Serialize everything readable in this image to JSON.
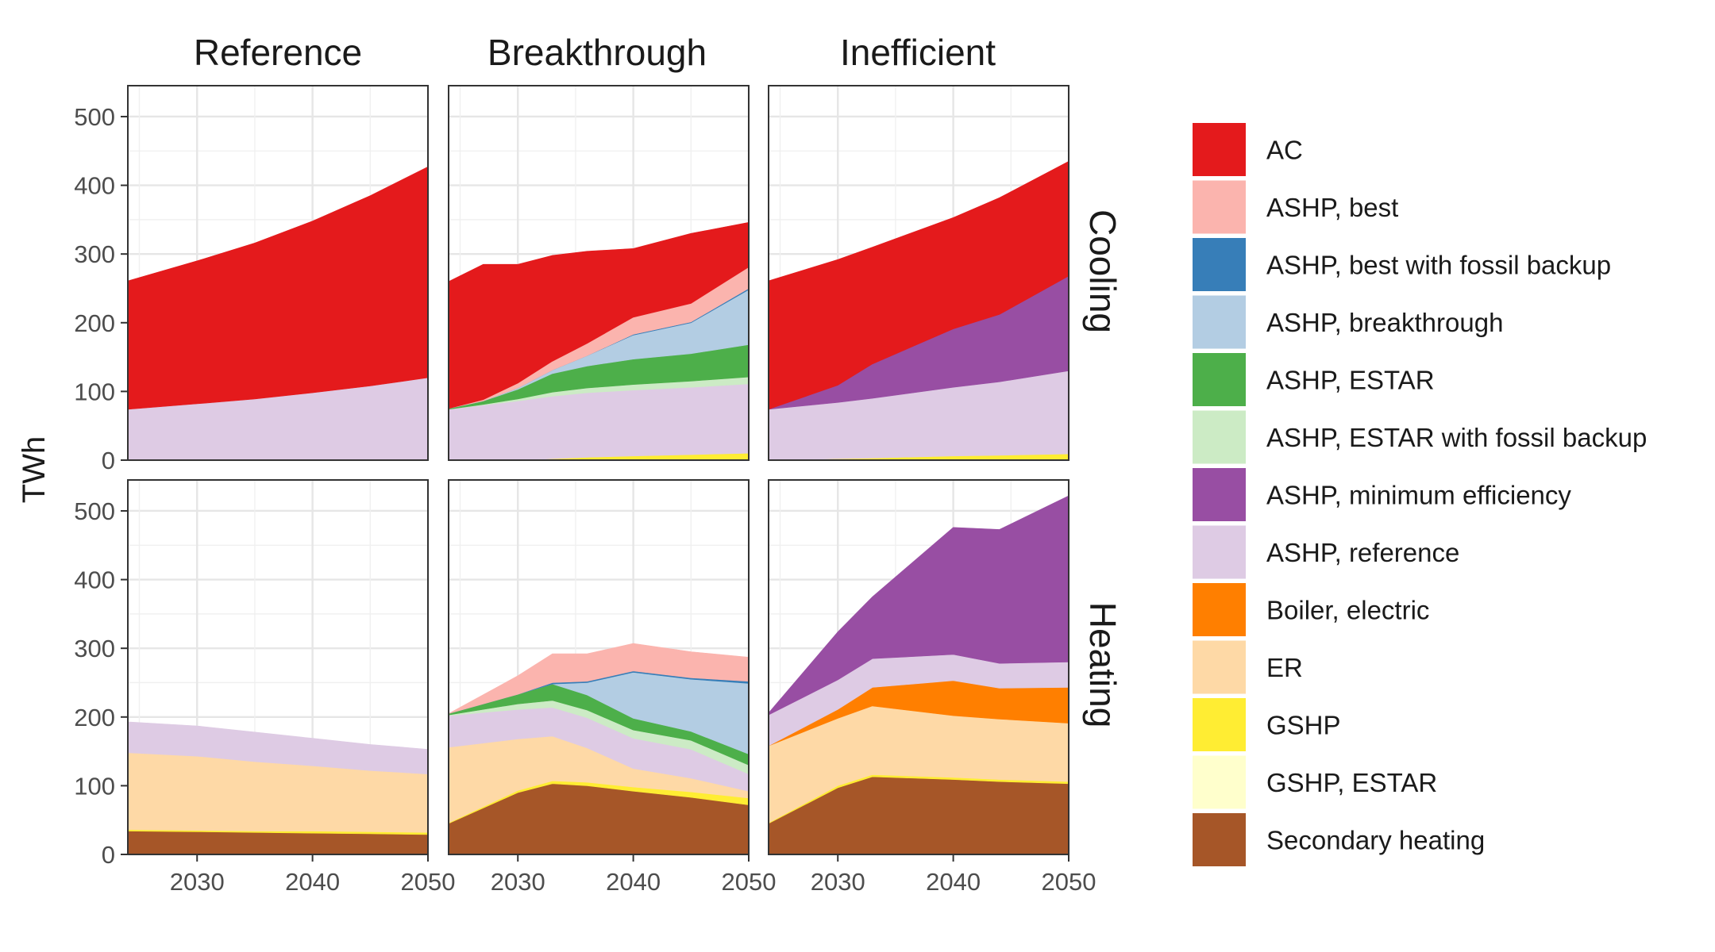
{
  "chart_data": {
    "type": "area",
    "stacked": true,
    "ylabel": "TWh",
    "xlabel": "",
    "x_ticks": [
      2030,
      2040,
      2050
    ],
    "y_ticks": [
      0,
      100,
      200,
      300,
      400,
      500
    ],
    "xlim": [
      2024,
      2050
    ],
    "ylim": [
      0,
      545
    ],
    "grid": true,
    "legend_position": "right",
    "columns": [
      "Reference",
      "Breakthrough",
      "Inefficient"
    ],
    "rows": [
      "Cooling",
      "Heating"
    ],
    "legend": [
      {
        "name": "AC",
        "color": "#E41A1C"
      },
      {
        "name": "ASHP, best",
        "color": "#FBB4AE"
      },
      {
        "name": "ASHP, best with fossil backup",
        "color": "#377EB8"
      },
      {
        "name": "ASHP, breakthrough",
        "color": "#B3CDE3"
      },
      {
        "name": "ASHP, ESTAR",
        "color": "#4DAF4A"
      },
      {
        "name": "ASHP, ESTAR with fossil backup",
        "color": "#CCEBC5"
      },
      {
        "name": "ASHP, minimum efficiency",
        "color": "#984EA3"
      },
      {
        "name": "ASHP, reference",
        "color": "#DECBE4"
      },
      {
        "name": "Boiler, electric",
        "color": "#FF7F00"
      },
      {
        "name": "ER",
        "color": "#FED9A6"
      },
      {
        "name": "GSHP",
        "color": "#FFED33"
      },
      {
        "name": "GSHP, ESTAR",
        "color": "#FFFFCC"
      },
      {
        "name": "Secondary heating",
        "color": "#A65628"
      }
    ],
    "stack_order": [
      "Secondary heating",
      "GSHP, ESTAR",
      "GSHP",
      "ER",
      "Boiler, electric",
      "ASHP, reference",
      "ASHP, minimum efficiency",
      "ASHP, ESTAR with fossil backup",
      "ASHP, ESTAR",
      "ASHP, breakthrough",
      "ASHP, best with fossil backup",
      "ASHP, best",
      "AC"
    ],
    "panels": [
      {
        "column": "Reference",
        "row": "Cooling",
        "x": [
          2024,
          2030,
          2035,
          2040,
          2045,
          2050
        ],
        "series": [
          {
            "name": "ASHP, reference",
            "values": [
              74,
              82,
              89,
              98,
              108,
              120
            ]
          },
          {
            "name": "AC",
            "values": [
              187,
              208,
              227,
              250,
              277,
              307
            ]
          }
        ]
      },
      {
        "column": "Breakthrough",
        "row": "Cooling",
        "x": [
          2024,
          2027,
          2030,
          2033,
          2036,
          2040,
          2045,
          2050
        ],
        "series": [
          {
            "name": "GSHP",
            "values": [
              0,
              0,
              0,
              2,
              4,
              6,
              8,
              10
            ]
          },
          {
            "name": "ASHP, reference",
            "values": [
              74,
              80,
              86,
              91,
              94,
              96,
              98,
              101
            ]
          },
          {
            "name": "ASHP, ESTAR with fossil backup",
            "values": [
              0,
              1,
              3,
              6,
              7,
              8,
              9,
              10
            ]
          },
          {
            "name": "ASHP, ESTAR",
            "values": [
              1,
              5,
              14,
              27,
              32,
              37,
              40,
              47
            ]
          },
          {
            "name": "ASHP, breakthrough",
            "values": [
              0,
              0,
              2,
              5,
              15,
              35,
              45,
              80
            ]
          },
          {
            "name": "ASHP, best with fossil backup",
            "values": [
              0,
              0,
              0,
              0,
              0,
              1,
              1,
              2
            ]
          },
          {
            "name": "ASHP, best",
            "values": [
              0,
              2,
              7,
              13,
              18,
              25,
              27,
              31
            ]
          },
          {
            "name": "AC",
            "values": [
              185,
              197,
              173,
              154,
              134,
              100,
              102,
              65
            ]
          }
        ]
      },
      {
        "column": "Inefficient",
        "row": "Cooling",
        "x": [
          2024,
          2030,
          2033,
          2040,
          2044,
          2050
        ],
        "series": [
          {
            "name": "GSHP",
            "values": [
              0,
              2,
              3,
              6,
              7,
              9
            ]
          },
          {
            "name": "ASHP, reference",
            "values": [
              74,
              82,
              87,
              100,
              107,
              121
            ]
          },
          {
            "name": "ASHP, minimum efficiency",
            "values": [
              0,
              25,
              50,
              85,
              98,
              138
            ]
          },
          {
            "name": "AC",
            "values": [
              187,
              183,
              170,
              162,
              170,
              167
            ]
          }
        ]
      },
      {
        "column": "Reference",
        "row": "Heating",
        "x": [
          2024,
          2030,
          2035,
          2040,
          2045,
          2050
        ],
        "series": [
          {
            "name": "Secondary heating",
            "values": [
              34,
              33,
              32,
              31,
              30,
              29
            ]
          },
          {
            "name": "GSHP",
            "values": [
              2,
              2,
              2,
              3,
              3,
              3
            ]
          },
          {
            "name": "ER",
            "values": [
              112,
              108,
              101,
              95,
              89,
              85
            ]
          },
          {
            "name": "ASHP, reference",
            "values": [
              45,
              44,
              43,
              40,
              38,
              36
            ]
          }
        ]
      },
      {
        "column": "Breakthrough",
        "row": "Heating",
        "x": [
          2024,
          2030,
          2033,
          2036,
          2040,
          2045,
          2050
        ],
        "series": [
          {
            "name": "Secondary heating",
            "values": [
              45,
              90,
              103,
              100,
              92,
              83,
              72
            ]
          },
          {
            "name": "GSHP",
            "values": [
              1,
              3,
              4,
              5,
              6,
              8,
              10
            ]
          },
          {
            "name": "ER",
            "values": [
              110,
              75,
              65,
              50,
              27,
              20,
              10
            ]
          },
          {
            "name": "ASHP, reference",
            "values": [
              46,
              43,
              42,
              44,
              44,
              42,
              25
            ]
          },
          {
            "name": "ASHP, ESTAR with fossil backup",
            "values": [
              1,
              8,
              10,
              11,
              12,
              13,
              13
            ]
          },
          {
            "name": "ASHP, ESTAR",
            "values": [
              2,
              14,
              24,
              22,
              17,
              13,
              16
            ]
          },
          {
            "name": "ASHP, breakthrough",
            "values": [
              0,
              0,
              0,
              18,
              67,
              76,
              103
            ]
          },
          {
            "name": "ASHP, best with fossil backup",
            "values": [
              0,
              0,
              2,
              2,
              2,
              2,
              3
            ]
          },
          {
            "name": "ASHP, best",
            "values": [
              0,
              27,
              42,
              40,
              40,
              38,
              35
            ]
          }
        ]
      },
      {
        "column": "Inefficient",
        "row": "Heating",
        "x": [
          2024,
          2030,
          2033,
          2040,
          2044,
          2050
        ],
        "series": [
          {
            "name": "Secondary heating",
            "values": [
              45,
              97,
              113,
              109,
              106,
              103
            ]
          },
          {
            "name": "GSHP",
            "values": [
              1,
              3,
              3,
              3,
              3,
              3
            ]
          },
          {
            "name": "ER",
            "values": [
              112,
              98,
              100,
              90,
              88,
              85
            ]
          },
          {
            "name": "Boiler, electric",
            "values": [
              0,
              13,
              27,
              51,
              45,
              52
            ]
          },
          {
            "name": "ASHP, reference",
            "values": [
              45,
              43,
              42,
              38,
              36,
              37
            ]
          },
          {
            "name": "ASHP, minimum efficiency",
            "values": [
              3,
              70,
              90,
              185,
              195,
              242
            ]
          }
        ]
      }
    ]
  }
}
